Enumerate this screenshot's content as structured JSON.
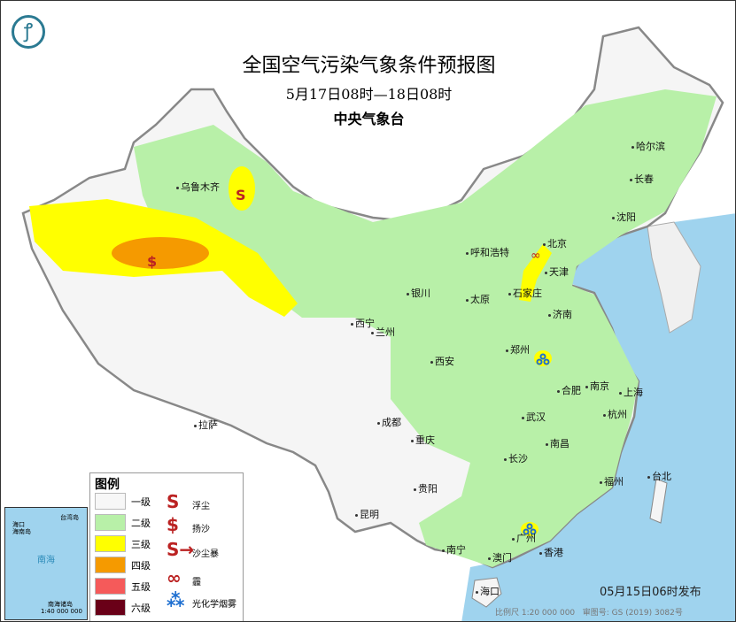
{
  "header": {
    "title": "全国空气污染气象条件预报图",
    "period": "5月17日08时—18日08时",
    "agency": "中央气象台"
  },
  "logo": {
    "icon": "cma-dragon-logo",
    "color": "#2b7a92"
  },
  "cities": [
    {
      "name": "乌鲁木齐"
    },
    {
      "name": "哈尔滨"
    },
    {
      "name": "长春"
    },
    {
      "name": "沈阳"
    },
    {
      "name": "北京"
    },
    {
      "name": "天津"
    },
    {
      "name": "呼和浩特"
    },
    {
      "name": "太原"
    },
    {
      "name": "石家庄"
    },
    {
      "name": "济南"
    },
    {
      "name": "银川"
    },
    {
      "name": "西宁"
    },
    {
      "name": "兰州"
    },
    {
      "name": "郑州"
    },
    {
      "name": "西安"
    },
    {
      "name": "合肥"
    },
    {
      "name": "南京"
    },
    {
      "name": "上海"
    },
    {
      "name": "杭州"
    },
    {
      "name": "武汉"
    },
    {
      "name": "成都"
    },
    {
      "name": "重庆"
    },
    {
      "name": "拉萨"
    },
    {
      "name": "长沙"
    },
    {
      "name": "南昌"
    },
    {
      "name": "福州"
    },
    {
      "name": "台北"
    },
    {
      "name": "贵阳"
    },
    {
      "name": "昆明"
    },
    {
      "name": "南宁"
    },
    {
      "name": "广州"
    },
    {
      "name": "香港"
    },
    {
      "name": "澳门"
    },
    {
      "name": "海口"
    }
  ],
  "legend": {
    "title": "图例",
    "levels": [
      {
        "label": "一级",
        "color": "#f7f7f7"
      },
      {
        "label": "二级",
        "color": "#b8f0a8"
      },
      {
        "label": "三级",
        "color": "#ffff00"
      },
      {
        "label": "四级",
        "color": "#f59a00"
      },
      {
        "label": "五级",
        "color": "#f55a5a"
      },
      {
        "label": "六级",
        "color": "#6a0018"
      }
    ],
    "symbols": [
      {
        "label": "浮尘",
        "glyph": "S",
        "icon": "floating-dust-icon"
      },
      {
        "label": "扬沙",
        "glyph": "$",
        "icon": "blowing-sand-icon"
      },
      {
        "label": "沙尘暴",
        "glyph": "S→",
        "icon": "sandstorm-icon"
      },
      {
        "label": "霾",
        "glyph": "∞",
        "icon": "haze-icon"
      },
      {
        "label": "光化学烟雾",
        "glyph": "⁂",
        "icon": "photochemical-smog-icon"
      }
    ]
  },
  "inset": {
    "labels": [
      "南海",
      "海口",
      "海南岛",
      "台湾岛",
      "南海诸岛"
    ],
    "scale": "1:40 000 000"
  },
  "footer": {
    "published": "05月15日06时发布",
    "scale": "比例尺 1:20 000 000",
    "map_no": "审图号: GS (2019) 3082号"
  },
  "colors": {
    "sea": "#9fd3ee",
    "land_china": "#f5f5f5",
    "border": "#888888",
    "symbol": "#b22222",
    "smog": "#1e6fd0"
  }
}
